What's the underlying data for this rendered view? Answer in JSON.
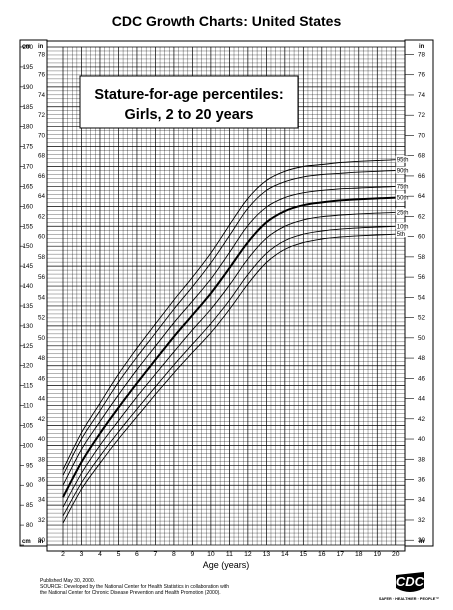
{
  "header": {
    "title": "CDC Growth Charts: United States"
  },
  "chart_data": {
    "type": "line",
    "title": "Stature-for-age percentiles:",
    "subtitle": "Girls, 2 to 20 years",
    "xlabel": "Age (years)",
    "x_ticks": [
      2,
      3,
      4,
      5,
      6,
      7,
      8,
      9,
      10,
      11,
      12,
      13,
      14,
      15,
      16,
      17,
      18,
      19,
      20
    ],
    "xlim": [
      2,
      20.5
    ],
    "ylim_cm": [
      75,
      200
    ],
    "y_cm_ticks": [
      75,
      80,
      85,
      90,
      95,
      100,
      105,
      110,
      115,
      120,
      125,
      130,
      135,
      140,
      145,
      150,
      155,
      160,
      165,
      170,
      175,
      180,
      185,
      190,
      195,
      200
    ],
    "y_in_ticks": [
      30,
      32,
      34,
      36,
      38,
      40,
      42,
      44,
      46,
      48,
      50,
      52,
      54,
      56,
      58,
      60,
      62,
      64,
      66,
      68,
      70,
      72,
      74,
      76,
      78
    ],
    "left_units": {
      "top": "cm",
      "top2": "in",
      "bottom": "cm",
      "bottom2": "in"
    },
    "right_units": {
      "top": "in",
      "bottom": "in"
    },
    "grid": true,
    "x": [
      2,
      3,
      4,
      5,
      6,
      7,
      8,
      9,
      10,
      11,
      12,
      13,
      14,
      15,
      16,
      17,
      18,
      19,
      20
    ],
    "series": [
      {
        "name": "95th",
        "values": [
          93.9,
          103.2,
          110.6,
          117.9,
          124.4,
          130.5,
          136.5,
          142.2,
          148.3,
          155.3,
          162.0,
          166.5,
          168.8,
          170.0,
          170.5,
          171.0,
          171.3,
          171.5,
          171.7
        ]
      },
      {
        "name": "90th",
        "values": [
          92.5,
          101.6,
          108.7,
          115.9,
          122.2,
          128.2,
          134.2,
          139.8,
          145.8,
          152.6,
          159.5,
          164.0,
          166.2,
          167.4,
          168.0,
          168.3,
          168.6,
          168.8,
          169.0
        ]
      },
      {
        "name": "75th",
        "values": [
          90.0,
          99.0,
          106.0,
          112.7,
          119.0,
          124.9,
          130.8,
          136.2,
          141.8,
          148.4,
          155.2,
          159.8,
          162.2,
          163.4,
          164.0,
          164.4,
          164.6,
          164.8,
          165.0
        ]
      },
      {
        "name": "50th",
        "values": [
          87.0,
          95.8,
          103.0,
          109.5,
          115.6,
          121.5,
          127.3,
          132.7,
          138.2,
          144.5,
          151.0,
          156.0,
          158.8,
          160.3,
          161.0,
          161.5,
          161.8,
          162.0,
          162.2
        ]
      },
      {
        "name": "25th",
        "values": [
          84.5,
          93.0,
          100.0,
          106.2,
          112.2,
          117.9,
          123.5,
          129.0,
          134.2,
          140.2,
          146.8,
          152.0,
          155.0,
          156.6,
          157.4,
          157.8,
          158.1,
          158.3,
          158.5
        ]
      },
      {
        "name": "10th",
        "values": [
          82.3,
          90.6,
          97.3,
          103.4,
          109.1,
          114.7,
          120.2,
          125.4,
          130.6,
          136.4,
          142.9,
          148.2,
          151.4,
          153.0,
          153.8,
          154.3,
          154.6,
          154.8,
          155.0
        ]
      },
      {
        "name": "5th",
        "values": [
          80.5,
          89.0,
          95.5,
          101.6,
          107.2,
          112.8,
          118.2,
          123.3,
          128.3,
          134.1,
          140.5,
          145.9,
          149.2,
          150.9,
          151.8,
          152.3,
          152.6,
          152.8,
          153.0
        ]
      }
    ]
  },
  "footer": {
    "line1": "Published May 30, 2000.",
    "line2": "SOURCE: Developed by the National Center for Health Statistics in collaboration with",
    "line3": "the National Center for Chronic Disease Prevention and Health Promotion (2000).",
    "logo_text": "CDC",
    "logo_caption": "SAFER · HEALTHIER · PEOPLE™"
  }
}
